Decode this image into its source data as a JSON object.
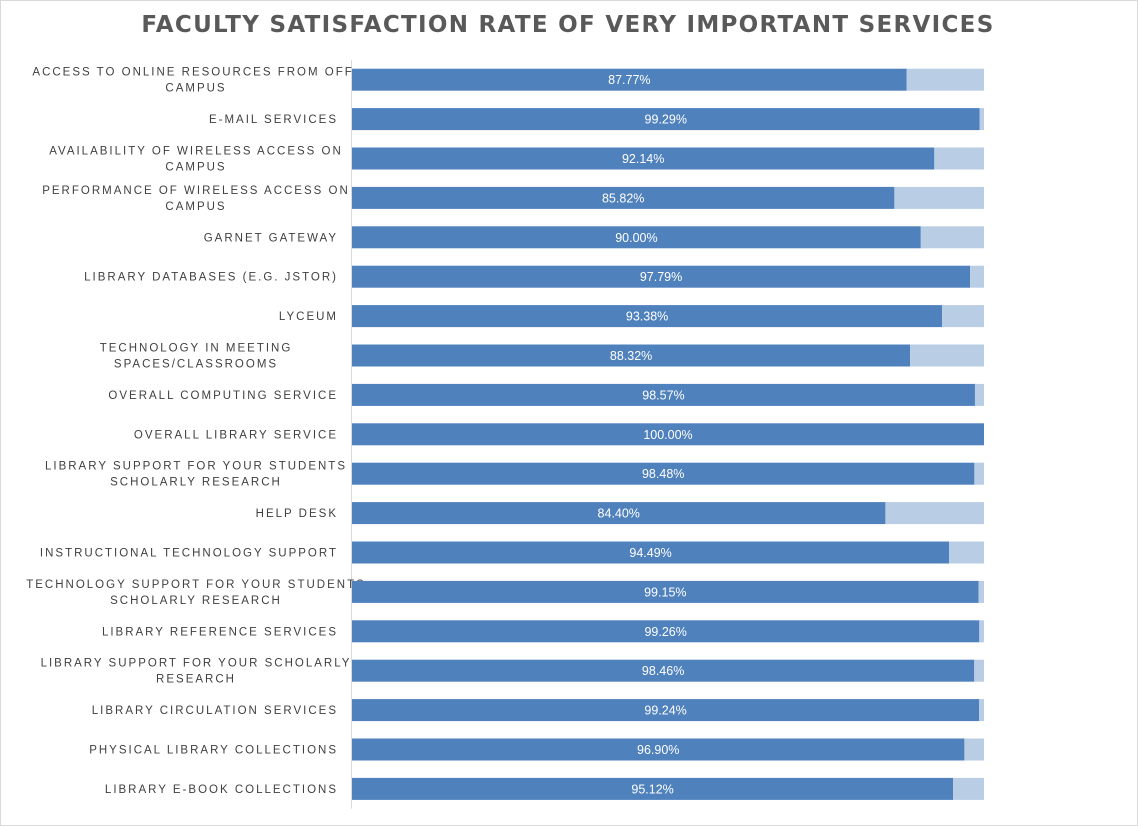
{
  "chart_data": {
    "type": "bar",
    "orientation": "horizontal",
    "stacked": true,
    "title": "FACULTY SATISFACTION RATE OF VERY IMPORTANT SERVICES",
    "xlim": [
      0,
      100
    ],
    "grid": false,
    "legend": "none",
    "categories": [
      [
        "ACCESS TO ONLINE RESOURCES FROM OFF-",
        "CAMPUS"
      ],
      [
        "E-MAIL SERVICES"
      ],
      [
        "AVAILABILITY OF WIRELESS ACCESS ON",
        "CAMPUS"
      ],
      [
        "PERFORMANCE OF WIRELESS ACCESS ON",
        "CAMPUS"
      ],
      [
        "GARNET GATEWAY"
      ],
      [
        "LIBRARY DATABASES (E.G. JSTOR)"
      ],
      [
        "LYCEUM"
      ],
      [
        "TECHNOLOGY IN MEETING",
        "SPACES/CLASSROOMS"
      ],
      [
        "OVERALL COMPUTING SERVICE"
      ],
      [
        "OVERALL LIBRARY SERVICE"
      ],
      [
        "LIBRARY SUPPORT FOR YOUR STUDENTS",
        "SCHOLARLY RESEARCH"
      ],
      [
        "HELP DESK"
      ],
      [
        "INSTRUCTIONAL TECHNOLOGY SUPPORT"
      ],
      [
        "TECHNOLOGY SUPPORT FOR YOUR STUDENTS",
        "SCHOLARLY RESEARCH"
      ],
      [
        "LIBRARY REFERENCE SERVICES"
      ],
      [
        "LIBRARY SUPPORT FOR YOUR SCHOLARLY",
        "RESEARCH"
      ],
      [
        "LIBRARY CIRCULATION SERVICES"
      ],
      [
        "PHYSICAL LIBRARY COLLECTIONS"
      ],
      [
        "LIBRARY E-BOOK COLLECTIONS"
      ]
    ],
    "series": [
      {
        "color": "#4f81bd",
        "values": [
          87.77,
          99.29,
          92.14,
          85.82,
          90.0,
          97.79,
          93.38,
          88.32,
          98.57,
          100.0,
          98.48,
          84.4,
          94.49,
          99.15,
          99.26,
          98.46,
          99.24,
          96.9,
          95.12
        ],
        "data_labels": [
          "87.77%",
          "99.29%",
          "92.14%",
          "85.82%",
          "90.00%",
          "97.79%",
          "93.38%",
          "88.32%",
          "98.57%",
          "100.00%",
          "98.48%",
          "84.40%",
          "94.49%",
          "99.15%",
          "99.26%",
          "98.46%",
          "99.24%",
          "96.90%",
          "95.12%"
        ]
      },
      {
        "color": "#b9cde5",
        "values": [
          12.23,
          0.71,
          7.86,
          14.18,
          10.0,
          2.21,
          6.62,
          11.68,
          1.43,
          0.0,
          1.52,
          15.6,
          5.51,
          0.85,
          0.74,
          1.54,
          0.76,
          3.1,
          4.88
        ]
      }
    ]
  }
}
